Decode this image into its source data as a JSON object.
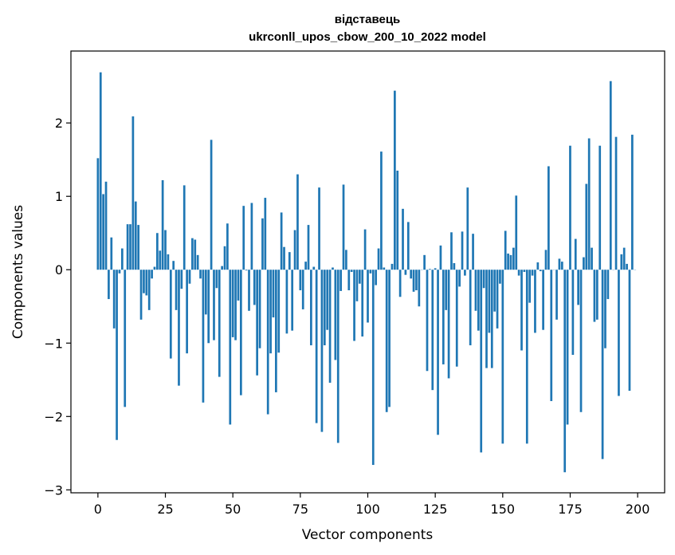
{
  "chart_data": {
    "type": "bar",
    "title": "відставець",
    "subtitle": "ukrconll_upos_cbow_200_10_2022 model",
    "xlabel": "Vector components",
    "ylabel": "Components values",
    "xlim": [
      -10,
      210
    ],
    "ylim": [
      -3.04,
      2.98
    ],
    "x_ticks": [
      0,
      25,
      50,
      75,
      100,
      125,
      150,
      175,
      200
    ],
    "x_tick_labels": [
      "0",
      "25",
      "50",
      "75",
      "100",
      "125",
      "150",
      "175",
      "200"
    ],
    "y_ticks": [
      -3,
      -2,
      -1,
      0,
      1,
      2
    ],
    "y_tick_labels": [
      "−3",
      "−2",
      "−1",
      "0",
      "1",
      "2"
    ],
    "grid": false,
    "legend": "none",
    "bar_color": "#1f77b4",
    "values": [
      1.52,
      2.69,
      1.03,
      1.2,
      -0.4,
      0.44,
      -0.8,
      -2.32,
      -0.05,
      0.29,
      -1.87,
      0.62,
      0.62,
      2.09,
      0.93,
      0.61,
      -0.68,
      -0.32,
      -0.35,
      -0.55,
      -0.12,
      0.04,
      0.5,
      0.26,
      1.22,
      0.54,
      0.21,
      -1.21,
      0.12,
      -0.55,
      -1.58,
      -0.26,
      1.15,
      -1.14,
      -0.19,
      0.43,
      0.41,
      0.2,
      -0.12,
      -1.81,
      -0.61,
      -1.0,
      1.77,
      -0.96,
      -0.25,
      -1.46,
      0.05,
      0.32,
      0.63,
      -2.11,
      -0.92,
      -0.96,
      -0.42,
      -1.71,
      0.87,
      -0.01,
      -0.56,
      0.91,
      -0.48,
      -1.44,
      -1.07,
      0.7,
      0.98,
      -1.97,
      -1.14,
      -0.65,
      -1.67,
      -1.13,
      0.78,
      0.31,
      -0.87,
      0.24,
      -0.83,
      0.54,
      1.3,
      -0.28,
      -0.54,
      0.11,
      0.61,
      -1.03,
      0.04,
      -2.09,
      1.12,
      -2.21,
      -1.03,
      -0.82,
      -1.54,
      0.03,
      -1.23,
      -2.36,
      -0.29,
      1.16,
      0.27,
      -0.28,
      -0.03,
      -0.97,
      -0.43,
      -0.19,
      -0.91,
      0.55,
      -0.72,
      -0.05,
      -2.66,
      -0.21,
      0.29,
      1.61,
      0.03,
      -1.94,
      -1.87,
      0.08,
      2.44,
      1.35,
      -0.37,
      0.83,
      -0.07,
      0.65,
      -0.12,
      -0.3,
      -0.28,
      -0.5,
      0.0,
      0.2,
      -1.38,
      0.01,
      -1.64,
      0.02,
      -2.25,
      0.33,
      -1.29,
      -0.55,
      -1.48,
      0.51,
      0.09,
      -1.32,
      -0.23,
      0.52,
      -0.08,
      1.12,
      -1.03,
      0.49,
      -0.56,
      -0.83,
      -2.49,
      -0.25,
      -1.34,
      -0.86,
      -1.34,
      -0.57,
      -0.8,
      -0.19,
      -2.37,
      0.53,
      0.22,
      0.2,
      0.3,
      1.01,
      -0.08,
      -1.1,
      -0.03,
      -2.37,
      -0.45,
      -0.08,
      -0.86,
      0.1,
      -0.02,
      -0.82,
      0.27,
      1.41,
      -1.79,
      0.0,
      -0.68,
      0.15,
      0.11,
      -2.76,
      -2.11,
      1.69,
      -1.16,
      0.42,
      -0.48,
      -1.94,
      0.17,
      1.17,
      1.79,
      0.3,
      -0.71,
      -0.68,
      1.69,
      -2.58,
      -1.07,
      -0.4,
      2.57,
      0.0,
      1.81,
      -1.72,
      0.21,
      0.3,
      0.08,
      -1.65,
      1.84,
      0.0
    ]
  }
}
